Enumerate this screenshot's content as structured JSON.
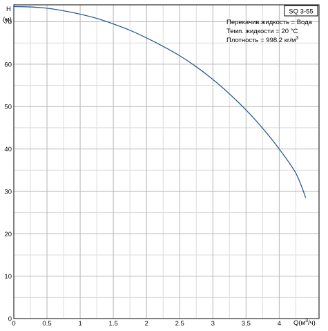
{
  "chart_data": {
    "type": "line",
    "title": "SQ 3-55",
    "ylabel_symbol": "H",
    "ylabel_unit": "(м)",
    "xlabel_prefix": "Q(м",
    "xlabel_sup": "3",
    "xlabel_suffix": "/ч)",
    "xlim": [
      0,
      4.6
    ],
    "ylim": [
      0,
      74
    ],
    "x_ticks": [
      0,
      0.5,
      1,
      1.5,
      2,
      2.5,
      3,
      3.5,
      4
    ],
    "x_tick_labels": [
      "0",
      "0.5",
      "1",
      "1.5",
      "2",
      "2.5",
      "3",
      "3.5",
      "4"
    ],
    "y_ticks": [
      0,
      10,
      20,
      30,
      40,
      50,
      60,
      70
    ],
    "y_tick_labels": [
      "0",
      "10",
      "20",
      "30",
      "40",
      "50",
      "60",
      "70"
    ],
    "grid": true,
    "info_lines": [
      "Перекачив.жидкость = Вода",
      "Темп. жидкости = 20 °C",
      "Плотность = 998.2 кг/м"
    ],
    "info_density_sup": "3",
    "line_color": "#2b5b8c",
    "series": [
      {
        "x": [
          0,
          0.25,
          0.5,
          0.75,
          1,
          1.25,
          1.5,
          1.75,
          2,
          2.25,
          2.5,
          2.75,
          3,
          3.25,
          3.5,
          3.75,
          4,
          4.25,
          4.4
        ],
        "values": [
          73.6,
          73.5,
          73.2,
          72.6,
          71.8,
          70.8,
          69.5,
          68.0,
          66.2,
          64.2,
          62.0,
          59.4,
          56.4,
          53.0,
          49.2,
          44.9,
          40.0,
          34.3,
          28.5
        ]
      }
    ]
  }
}
